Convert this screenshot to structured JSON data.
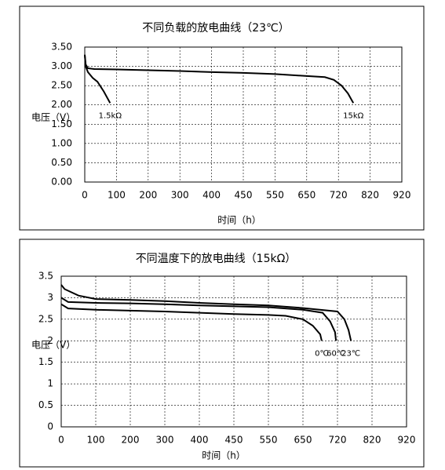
{
  "chart_data": [
    {
      "type": "line",
      "title": "不同负载的放电曲线（23℃）",
      "y_label": "电压（V）",
      "x_label": "时间（h）",
      "xlim": [
        0,
        920
      ],
      "xticks": [
        0,
        100,
        200,
        300,
        400,
        450,
        550,
        650,
        720,
        820,
        920
      ],
      "ylim": [
        0,
        3.5
      ],
      "yticks": [
        {
          "value": 0,
          "label": "0.00"
        },
        {
          "value": 0.5,
          "label": "0.50"
        },
        {
          "value": 1,
          "label": "1.00"
        },
        {
          "value": 1.5,
          "label": "1.50"
        },
        {
          "value": 2,
          "label": "2.00"
        },
        {
          "value": 2.5,
          "label": "2.50"
        },
        {
          "value": 3,
          "label": "3.00"
        },
        {
          "value": 3.5,
          "label": "3.50"
        }
      ],
      "grid": true,
      "series": [
        {
          "name": "1.5kΩ",
          "color": "#000000",
          "x": [
            0,
            3,
            10,
            25,
            40,
            60,
            80
          ],
          "values": [
            3.3,
            3.0,
            2.85,
            2.7,
            2.6,
            2.35,
            2.05
          ]
        },
        {
          "name": "15kΩ",
          "color": "#000000",
          "x": [
            0,
            3,
            10,
            30,
            100,
            200,
            300,
            400,
            450,
            550,
            650,
            690,
            710,
            730,
            750,
            767
          ],
          "values": [
            3.3,
            3.05,
            2.95,
            2.93,
            2.92,
            2.9,
            2.88,
            2.85,
            2.83,
            2.8,
            2.75,
            2.72,
            2.65,
            2.5,
            2.3,
            2.05
          ]
        }
      ]
    },
    {
      "type": "line",
      "title": "不同温度下的放电曲线（15kΩ）",
      "y_label": "电压（V）",
      "x_label": "时间（h）",
      "xlim": [
        0,
        920
      ],
      "xticks": [
        0,
        100,
        200,
        300,
        400,
        450,
        550,
        650,
        720,
        820,
        920
      ],
      "ylim": [
        0,
        3.5
      ],
      "yticks": [
        0,
        0.5,
        1,
        1.5,
        2,
        2.5,
        3,
        3.5
      ],
      "grid": true,
      "series": [
        {
          "name": "0℃",
          "color": "#000000",
          "x": [
            0,
            20,
            100,
            200,
            300,
            400,
            450,
            550,
            600,
            650,
            670,
            685,
            688
          ],
          "values": [
            2.85,
            2.75,
            2.72,
            2.7,
            2.68,
            2.65,
            2.62,
            2.6,
            2.58,
            2.5,
            2.35,
            2.15,
            2.0
          ]
        },
        {
          "name": "60℃",
          "color": "#000000",
          "x": [
            0,
            20,
            100,
            200,
            300,
            400,
            450,
            550,
            650,
            690,
            705,
            715,
            717
          ],
          "values": [
            3.0,
            2.9,
            2.88,
            2.87,
            2.85,
            2.82,
            2.8,
            2.78,
            2.72,
            2.65,
            2.45,
            2.2,
            2.0
          ]
        },
        {
          "name": "23℃",
          "color": "#000000",
          "x": [
            0,
            10,
            50,
            100,
            200,
            300,
            400,
            450,
            550,
            650,
            720,
            740,
            752,
            759
          ],
          "values": [
            3.3,
            3.2,
            3.05,
            2.97,
            2.95,
            2.92,
            2.88,
            2.85,
            2.82,
            2.76,
            2.68,
            2.5,
            2.25,
            2.0
          ]
        }
      ]
    }
  ]
}
